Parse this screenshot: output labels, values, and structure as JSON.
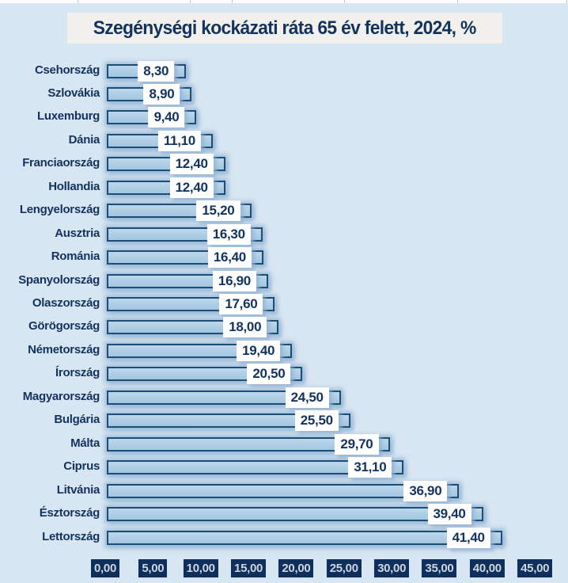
{
  "colors": {
    "page_background": "#d8e5f2",
    "title_box_background": "#f1f0ec",
    "title_text": "#13335e",
    "bar_fill_light": "#bdd7ea",
    "bar_fill_dark": "#a2c6e1",
    "bar_border": "#1d4d74",
    "value_box_background": "#ffffff",
    "value_text": "#12335f",
    "axis_chip_background": "#0e2f5b",
    "axis_chip_text": "#cdd6e0",
    "country_label_text": "#13335e"
  },
  "chart_data": {
    "type": "bar",
    "orientation": "horizontal",
    "title": "Szegénységi kockázati ráta 65 év felett, 2024, %",
    "categories": [
      "Csehország",
      "Szlovákia",
      "Luxemburg",
      "Dánia",
      "Franciaország",
      "Hollandia",
      "Lengyelország",
      "Ausztria",
      "Románia",
      "Spanyolország",
      "Olaszország",
      "Görögország",
      "Németország",
      "Írország",
      "Magyarország",
      "Bulgária",
      "Málta",
      "Ciprus",
      "Litvánia",
      "Észtország",
      "Lettország"
    ],
    "values": [
      8.3,
      8.9,
      9.4,
      11.1,
      12.4,
      12.4,
      15.2,
      16.3,
      16.4,
      16.9,
      17.6,
      18.0,
      19.4,
      20.5,
      24.5,
      25.5,
      29.7,
      31.1,
      36.9,
      39.4,
      41.4
    ],
    "value_labels": [
      "8,30",
      "8,90",
      "9,40",
      "11,10",
      "12,40",
      "12,40",
      "15,20",
      "16,30",
      "16,40",
      "16,90",
      "17,60",
      "18,00",
      "19,40",
      "20,50",
      "24,50",
      "25,50",
      "29,70",
      "31,10",
      "36,90",
      "39,40",
      "41,40"
    ],
    "xlabel": "",
    "ylabel": "",
    "xlim": [
      0,
      45
    ],
    "x_tick_values": [
      0,
      5,
      10,
      15,
      20,
      25,
      30,
      35,
      40,
      45
    ],
    "x_tick_labels": [
      "0,00",
      "5,00",
      "10,00",
      "15,00",
      "20,00",
      "25,00",
      "30,00",
      "35,00",
      "40,00",
      "45,00"
    ],
    "grid": false,
    "legend": null
  }
}
